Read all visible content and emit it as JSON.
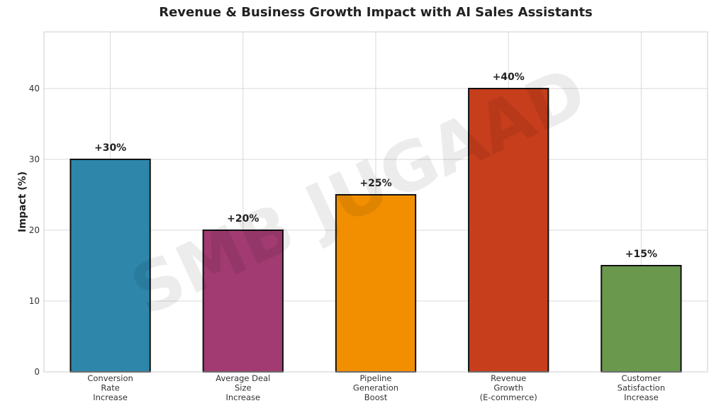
{
  "chart_data": {
    "type": "bar",
    "title": "Revenue & Business Growth Impact with AI Sales Assistants",
    "xlabel": "",
    "ylabel": "Impact (%)",
    "ylim": [
      0,
      48
    ],
    "yticks": [
      0,
      10,
      20,
      30,
      40
    ],
    "grid": true,
    "categories": [
      [
        "Conversion",
        "Rate",
        "Increase"
      ],
      [
        "Average Deal",
        "Size",
        "Increase"
      ],
      [
        "Pipeline",
        "Generation",
        "Boost"
      ],
      [
        "Revenue",
        "Growth",
        "(E-commerce)"
      ],
      [
        "Customer",
        "Satisfaction",
        "Increase"
      ]
    ],
    "values": [
      30,
      20,
      25,
      40,
      15
    ],
    "data_labels": [
      "+30%",
      "+20%",
      "+25%",
      "+40%",
      "+15%"
    ],
    "colors": [
      "#2E86AB",
      "#A23B72",
      "#F18F01",
      "#C73E1D",
      "#6A994E"
    ],
    "watermark": "SMB JUGAAD"
  }
}
